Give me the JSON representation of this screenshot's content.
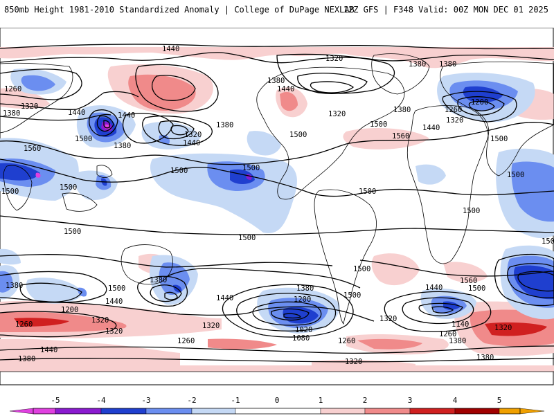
{
  "header": {
    "title_left": "850mb Height 1981-2010 Standardized Anomaly | College of DuPage NEXLAB",
    "title_right": "12Z GFS | F348 Valid: 00Z MON DEC 01 2025"
  },
  "colors": {
    "neg5": "#e040e0",
    "neg4": "#8a1ad0",
    "neg3": "#1f3fcf",
    "neg2": "#6b8ef0",
    "neg1": "#c5d9f5",
    "zero": "#ffffff",
    "pos1": "#f8d0d0",
    "pos2": "#f08a8a",
    "pos3": "#d02020",
    "pos4": "#a00000",
    "pos5": "#f0a000"
  },
  "colorbar": {
    "ticks": [
      "-5",
      "-4",
      "-3",
      "-2",
      "-1",
      "0",
      "1",
      "2",
      "3",
      "4",
      "5"
    ]
  },
  "contour_labels": [
    {
      "id": "l1440_top",
      "text": "1440"
    },
    {
      "id": "l1320_top",
      "text": "1320"
    },
    {
      "id": "l1380_ne",
      "text": "1380"
    },
    {
      "id": "l1260_w",
      "text": "1260"
    },
    {
      "id": "l1320_w",
      "text": "1320"
    },
    {
      "id": "l1380_w",
      "text": "1380"
    },
    {
      "id": "l1440_w",
      "text": "1440"
    },
    {
      "id": "l1440_c",
      "text": "1440"
    },
    {
      "id": "l1500_nw",
      "text": "1500"
    },
    {
      "id": "l1380_nwc",
      "text": "1380"
    },
    {
      "id": "l1320_pac",
      "text": "1320"
    },
    {
      "id": "l1380_pac",
      "text": "1380"
    },
    {
      "id": "l1440_pac",
      "text": "1440"
    },
    {
      "id": "l1500_pac",
      "text": "1500"
    },
    {
      "id": "l1380_na",
      "text": "1380"
    },
    {
      "id": "l1440_na",
      "text": "1440"
    },
    {
      "id": "l1500_na",
      "text": "1500"
    },
    {
      "id": "l1320_na",
      "text": "1320"
    },
    {
      "id": "l1380_hb",
      "text": "1380"
    },
    {
      "id": "l1500_us",
      "text": "1500"
    },
    {
      "id": "l1560_atl",
      "text": "1560"
    },
    {
      "id": "l1380_eu",
      "text": "1380"
    },
    {
      "id": "l1440_eu",
      "text": "1440"
    },
    {
      "id": "l1260_eu",
      "text": "1260"
    },
    {
      "id": "l1200_eu",
      "text": "1200"
    },
    {
      "id": "l1320_eu",
      "text": "1320"
    },
    {
      "id": "l1500_af",
      "text": "1500"
    },
    {
      "id": "l1500_asia",
      "text": "1500"
    },
    {
      "id": "l1560_w",
      "text": "1560"
    },
    {
      "id": "l1500_w2",
      "text": "1500"
    },
    {
      "id": "l1500_w3",
      "text": "1500"
    },
    {
      "id": "l1500_io",
      "text": "1500"
    },
    {
      "id": "l1500_sa",
      "text": "1500"
    },
    {
      "id": "l1500_epac",
      "text": "1500"
    },
    {
      "id": "l1500_ea",
      "text": "1500"
    },
    {
      "id": "l1500_eaf",
      "text": "1500"
    },
    {
      "id": "l1500_chile",
      "text": "1500"
    },
    {
      "id": "l1500_sp",
      "text": "1500"
    },
    {
      "id": "l1500_arg",
      "text": "1500"
    },
    {
      "id": "l1560_sio",
      "text": "1560"
    },
    {
      "id": "l1500_sio",
      "text": "1500"
    },
    {
      "id": "l1440_sio",
      "text": "1440"
    },
    {
      "id": "l1380_sw",
      "text": "1380"
    },
    {
      "id": "l1200_sw",
      "text": "1200"
    },
    {
      "id": "l1440_sw",
      "text": "1440"
    },
    {
      "id": "l1380_aus",
      "text": "1380"
    },
    {
      "id": "l1500_aus",
      "text": "1500"
    },
    {
      "id": "l1440_tas",
      "text": "1440"
    },
    {
      "id": "l1320_so1",
      "text": "1320"
    },
    {
      "id": "l1320_so2",
      "text": "1320"
    },
    {
      "id": "l1380_sp1",
      "text": "1380"
    },
    {
      "id": "l1200_sp",
      "text": "1200"
    },
    {
      "id": "l1020_sp",
      "text": "1020"
    },
    {
      "id": "l1080_sp",
      "text": "1080"
    },
    {
      "id": "l1260_sp",
      "text": "1260"
    },
    {
      "id": "l1320_sa2",
      "text": "1320"
    },
    {
      "id": "l1140_sa",
      "text": "1140"
    },
    {
      "id": "l1260_sa",
      "text": "1260"
    },
    {
      "id": "l1380_sa",
      "text": "1380"
    },
    {
      "id": "l1320_sa3",
      "text": "1320"
    },
    {
      "id": "l1260_so",
      "text": "1260"
    },
    {
      "id": "l1320_so3",
      "text": "1320"
    },
    {
      "id": "l1260_sw2",
      "text": "1260"
    },
    {
      "id": "l1440_sw2",
      "text": "1440"
    },
    {
      "id": "l1380_sw2",
      "text": "1380"
    },
    {
      "id": "l1380_se",
      "text": "1380"
    },
    {
      "id": "l1320_bot",
      "text": "1320"
    }
  ]
}
